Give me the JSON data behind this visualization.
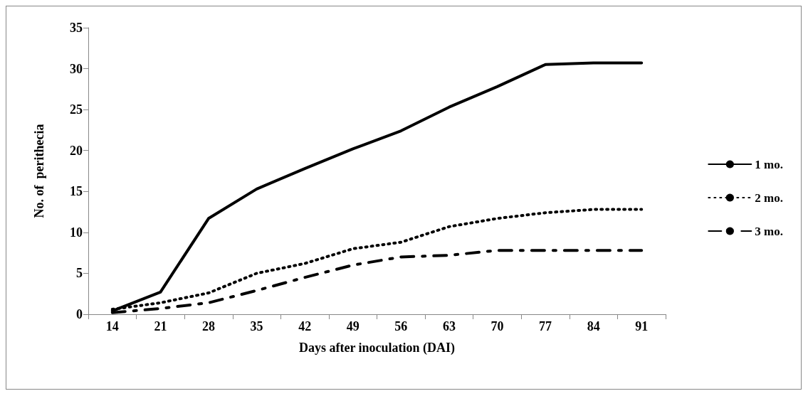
{
  "chart_data": {
    "type": "line",
    "xlabel": "Days after inoculation (DAI)",
    "ylabel": "No. of  perithecia",
    "categories": [
      "14",
      "21",
      "28",
      "35",
      "42",
      "49",
      "56",
      "63",
      "70",
      "77",
      "84",
      "91"
    ],
    "series": [
      {
        "name": "1 mo.",
        "color": "#000000",
        "line_style": "solid",
        "values": [
          0.4,
          2.7,
          11.7,
          15.3,
          17.8,
          20.2,
          22.4,
          25.3,
          27.8,
          30.5,
          30.7,
          30.7
        ]
      },
      {
        "name": "2 mo.",
        "color": "#000000",
        "line_style": "dotted",
        "values": [
          0.6,
          1.4,
          2.6,
          5.0,
          6.2,
          8.0,
          8.8,
          10.7,
          11.7,
          12.4,
          12.8,
          12.8
        ]
      },
      {
        "name": "3 mo.",
        "color": "#000000",
        "line_style": "dashed",
        "values": [
          0.2,
          0.7,
          1.4,
          2.9,
          4.5,
          6.0,
          7.0,
          7.2,
          7.8,
          7.8,
          7.8,
          7.8
        ]
      }
    ],
    "ylim": [
      0,
      35
    ],
    "yticks": [
      0,
      5,
      10,
      15,
      20,
      25,
      30,
      35
    ],
    "grid": false,
    "legend": "right",
    "marker": "none"
  }
}
